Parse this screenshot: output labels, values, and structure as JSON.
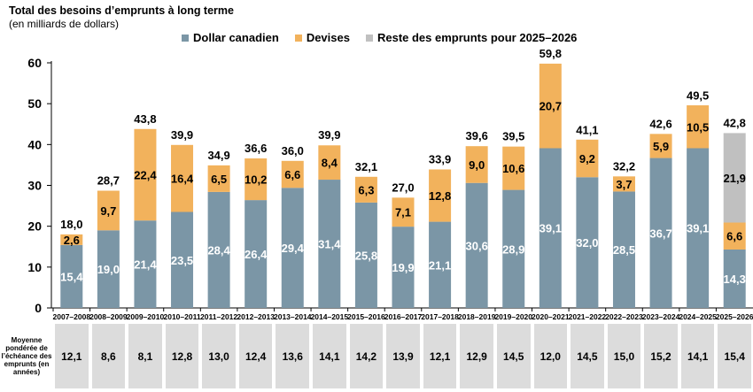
{
  "title": "Total des besoins d’emprunts à long terme",
  "subtitle": "(en milliards de dollars)",
  "legend": [
    {
      "label": "Dollar canadien",
      "color": "#7b96a6"
    },
    {
      "label": "Devises",
      "color": "#f2b25c"
    },
    {
      "label": "Reste des emprunts pour 2025–2026",
      "color": "#c0c0c0"
    }
  ],
  "table": {
    "label": "Moyenne pondérée de l’échéance des emprunts (en années)",
    "values": [
      "12,1",
      "8,6",
      "8,1",
      "12,8",
      "13,0",
      "12,4",
      "13,6",
      "14,1",
      "14,2",
      "13,9",
      "12,1",
      "12,9",
      "14,5",
      "12,0",
      "14,5",
      "15,0",
      "15,2",
      "14,1",
      "15,4"
    ]
  },
  "chart_data": {
    "type": "bar",
    "stacked": true,
    "title": "Total des besoins d’emprunts à long terme",
    "ylabel": "(en milliards de dollars)",
    "ylim": [
      0,
      60
    ],
    "yticks": [
      0,
      10,
      20,
      30,
      40,
      50,
      60
    ],
    "categories": [
      "2007–2008",
      "2008–2009",
      "2009–2010",
      "2010–2011",
      "2011–2012",
      "2012–2013",
      "2013–2014",
      "2014–2015",
      "2015–2016",
      "2016–2017",
      "2017–2018",
      "2018–2019",
      "2019–2020",
      "2020–2021",
      "2021–2022",
      "2022–2023",
      "2023–2024",
      "2024–2025",
      "2025–2026"
    ],
    "series": [
      {
        "name": "Dollar canadien",
        "color": "#7b96a6",
        "values": [
          15.4,
          19.0,
          21.4,
          23.5,
          28.4,
          26.4,
          29.4,
          31.4,
          25.8,
          19.9,
          21.1,
          30.6,
          28.9,
          39.1,
          32.0,
          28.5,
          36.7,
          39.1,
          14.3
        ],
        "labels": [
          "15,4",
          "19,0",
          "21,4",
          "23,5",
          "28,4",
          "26,4",
          "29,4",
          "31,4",
          "25,8",
          "19,9",
          "21,1",
          "30,6",
          "28,9",
          "39,1",
          "32,0",
          "28,5",
          "36,7",
          "39,1",
          "14,3"
        ]
      },
      {
        "name": "Devises",
        "color": "#f2b25c",
        "values": [
          2.6,
          9.7,
          22.4,
          16.4,
          6.5,
          10.2,
          6.6,
          8.4,
          6.3,
          7.1,
          12.8,
          9.0,
          10.6,
          20.7,
          9.2,
          3.7,
          5.9,
          10.5,
          6.6
        ],
        "labels": [
          "2,6",
          "9,7",
          "22,4",
          "16,4",
          "6,5",
          "10,2",
          "6,6",
          "8,4",
          "6,3",
          "7,1",
          "12,8",
          "9,0",
          "10,6",
          "20,7",
          "9,2",
          "3,7",
          "5,9",
          "10,5",
          "6,6"
        ]
      },
      {
        "name": "Reste des emprunts pour 2025–2026",
        "color": "#c0c0c0",
        "values": [
          0,
          0,
          0,
          0,
          0,
          0,
          0,
          0,
          0,
          0,
          0,
          0,
          0,
          0,
          0,
          0,
          0,
          0,
          21.9
        ],
        "labels": [
          "",
          "",
          "",
          "",
          "",
          "",
          "",
          "",
          "",
          "",
          "",
          "",
          "",
          "",
          "",
          "",
          "",
          "",
          "21,9"
        ]
      }
    ],
    "totals": [
      18.0,
      28.7,
      43.8,
      39.9,
      34.9,
      36.6,
      36.0,
      39.9,
      32.1,
      27.0,
      33.9,
      39.6,
      39.5,
      59.8,
      41.1,
      32.2,
      42.6,
      49.5,
      42.8
    ],
    "total_labels": [
      "18,0",
      "28,7",
      "43,8",
      "39,9",
      "34,9",
      "36,6",
      "36,0",
      "39,9",
      "32,1",
      "27,0",
      "33,9",
      "39,6",
      "39,5",
      "59,8",
      "41,1",
      "32,2",
      "42,6",
      "49,5",
      "42,8"
    ]
  }
}
